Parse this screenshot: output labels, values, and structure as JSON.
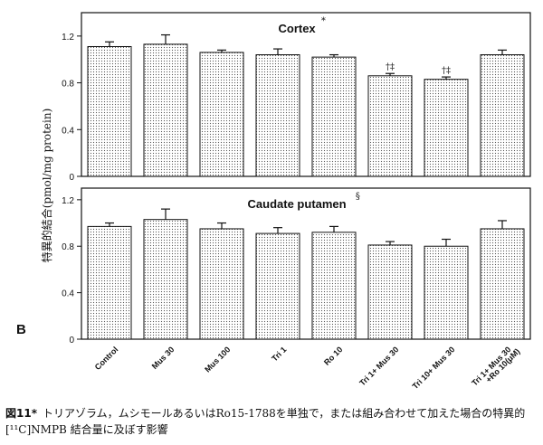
{
  "figure": {
    "panel_label": "B",
    "ylabel": "特異的結合(pmol/mg protein)",
    "caption_label": "図11*",
    "caption_text": "トリアゾラム，ムシモールあるいはRo15-1788を単独で，または組み合わせて加えた場合の特異的 [¹¹C]NMPB 結合量に及ぼす影響"
  },
  "colors": {
    "bar_fill": "#ffffff",
    "bar_dots": "#555555",
    "frame": "#111111"
  },
  "chart_data": [
    {
      "type": "bar",
      "title": "Cortex",
      "title_mark": "*",
      "categories": [
        "Control",
        "Mus 30",
        "Mus 100",
        "Tri 1",
        "Ro 10",
        "Tri 1+ Mus 30",
        "Tri 10+ Mus 30",
        "Tri 1+ Mus 30 +Ro 10(μM)"
      ],
      "values": [
        1.11,
        1.13,
        1.06,
        1.04,
        1.02,
        0.86,
        0.83,
        1.04
      ],
      "errors": [
        0.04,
        0.08,
        0.02,
        0.05,
        0.02,
        0.02,
        0.02,
        0.04
      ],
      "annotations": [
        "",
        "",
        "",
        "",
        "",
        "†‡",
        "†‡",
        ""
      ],
      "ylim": [
        0,
        1.4
      ],
      "yticks": [
        "0",
        "0.4",
        "0.8",
        "1.2"
      ],
      "ytick_values": [
        0,
        0.4,
        0.8,
        1.2
      ]
    },
    {
      "type": "bar",
      "title": "Caudate  putamen",
      "title_mark": "§",
      "categories": [
        "Control",
        "Mus 30",
        "Mus 100",
        "Tri 1",
        "Ro 10",
        "Tri 1+ Mus 30",
        "Tri 10+ Mus 30",
        "Tri 1+ Mus 30 +Ro 10(μM)"
      ],
      "values": [
        0.97,
        1.03,
        0.95,
        0.91,
        0.92,
        0.81,
        0.8,
        0.95
      ],
      "errors": [
        0.03,
        0.09,
        0.05,
        0.05,
        0.05,
        0.03,
        0.06,
        0.07
      ],
      "annotations": [
        "",
        "",
        "",
        "",
        "",
        "",
        "",
        ""
      ],
      "ylim": [
        0,
        1.3
      ],
      "yticks": [
        "0",
        "0.4",
        "0.8",
        "1.2"
      ],
      "ytick_values": [
        0,
        0.4,
        0.8,
        1.2
      ]
    }
  ]
}
